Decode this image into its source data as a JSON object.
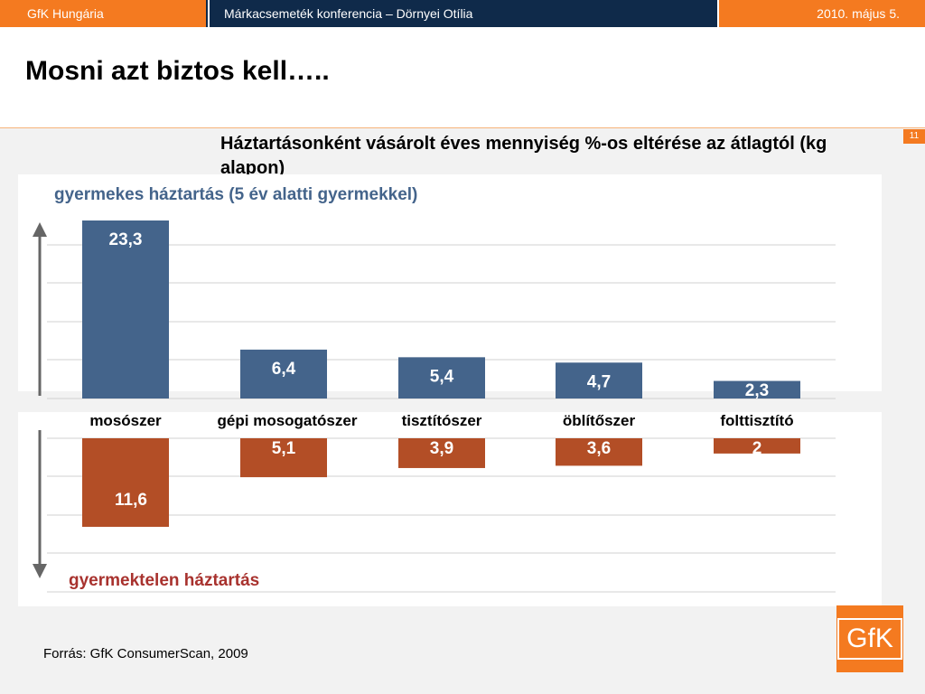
{
  "header": {
    "left": "GfK Hungária",
    "center": "Márkacsemeték konferencia – Dörnyei Otília",
    "right": "2010. május 5."
  },
  "slide": {
    "title": "Mosni azt biztos kell…..",
    "page_number": "11",
    "subtitle": "Háztartásonként vásárolt éves mennyiség %-os eltérése az átlagtól (kg alapon)",
    "source": "Forrás: GfK ConsumerScan, 2009",
    "logo": "GfK"
  },
  "colors": {
    "brand_orange": "#f47a20",
    "header_navy": "#0f2a4a",
    "series_up": "#44648b",
    "series_down": "#b34e26"
  },
  "chart_data": {
    "type": "bar",
    "categories": [
      "mosószer",
      "gépi mosogatószer",
      "tisztítószer",
      "öblítőszer",
      "folttisztító"
    ],
    "series": [
      {
        "name": "gyermekes háztartás (5 év alatti gyermekkel)",
        "values": [
          23.3,
          6.4,
          5.4,
          4.7,
          2.3
        ],
        "labels": [
          "23,3",
          "6,4",
          "5,4",
          "4,7",
          "2,3"
        ]
      },
      {
        "name": "gyermektelen háztartás",
        "values": [
          -11.6,
          -5.1,
          -3.9,
          -3.6,
          -2
        ],
        "labels": [
          "11,6",
          "5,1",
          "3,9",
          "3,6",
          "2"
        ]
      }
    ]
  }
}
